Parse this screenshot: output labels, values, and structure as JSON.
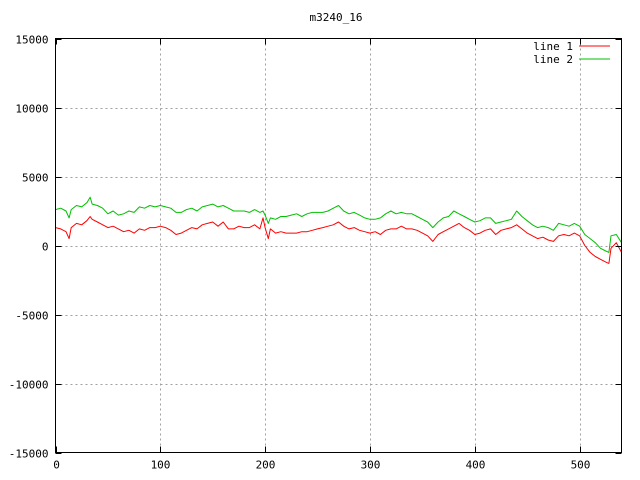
{
  "chart_data": {
    "type": "line",
    "title": "m3240_16",
    "xlabel": "",
    "ylabel": "",
    "xlim": [
      0,
      540
    ],
    "ylim": [
      -15000,
      15000
    ],
    "x_ticks": [
      0,
      100,
      200,
      300,
      400,
      500
    ],
    "y_ticks": [
      -15000,
      -10000,
      -5000,
      0,
      5000,
      10000,
      15000
    ],
    "grid": true,
    "legend_position": "top-right",
    "series": [
      {
        "name": "line 1",
        "color": "#ff0000",
        "x": [
          0,
          5,
          10,
          13,
          15,
          20,
          25,
          30,
          33,
          35,
          40,
          45,
          50,
          55,
          60,
          65,
          70,
          75,
          80,
          85,
          90,
          95,
          100,
          105,
          110,
          115,
          120,
          125,
          130,
          135,
          140,
          145,
          150,
          155,
          160,
          165,
          170,
          175,
          180,
          185,
          190,
          195,
          198,
          200,
          203,
          205,
          210,
          215,
          220,
          225,
          230,
          235,
          240,
          245,
          250,
          255,
          260,
          265,
          270,
          275,
          280,
          285,
          290,
          295,
          300,
          305,
          310,
          315,
          320,
          325,
          330,
          335,
          340,
          345,
          350,
          355,
          360,
          365,
          370,
          375,
          380,
          385,
          390,
          395,
          400,
          405,
          410,
          415,
          420,
          425,
          430,
          435,
          440,
          445,
          450,
          455,
          460,
          465,
          470,
          475,
          480,
          485,
          490,
          495,
          500,
          505,
          510,
          515,
          520,
          525,
          528,
          530,
          535,
          540
        ],
        "values": [
          1300,
          1200,
          1000,
          500,
          1300,
          1600,
          1500,
          1800,
          2100,
          1900,
          1700,
          1500,
          1300,
          1400,
          1200,
          1000,
          1100,
          900,
          1200,
          1100,
          1300,
          1300,
          1400,
          1300,
          1100,
          800,
          900,
          1100,
          1300,
          1200,
          1500,
          1600,
          1700,
          1400,
          1700,
          1200,
          1200,
          1400,
          1300,
          1300,
          1500,
          1200,
          2000,
          1300,
          500,
          1200,
          900,
          1000,
          900,
          900,
          900,
          1000,
          1000,
          1100,
          1200,
          1300,
          1400,
          1500,
          1700,
          1400,
          1200,
          1300,
          1100,
          1000,
          900,
          1000,
          800,
          1100,
          1200,
          1200,
          1400,
          1200,
          1200,
          1100,
          900,
          700,
          300,
          800,
          1000,
          1200,
          1400,
          1600,
          1300,
          1100,
          800,
          900,
          1100,
          1200,
          800,
          1100,
          1200,
          1300,
          1500,
          1200,
          900,
          700,
          500,
          600,
          400,
          300,
          700,
          800,
          700,
          900,
          700,
          0,
          -500,
          -800,
          -1000,
          -1200,
          -1300,
          -200,
          200,
          -500
        ]
      },
      {
        "name": "line 2",
        "color": "#00c000",
        "x": [
          0,
          5,
          10,
          13,
          15,
          20,
          25,
          30,
          33,
          35,
          40,
          45,
          50,
          55,
          60,
          65,
          70,
          75,
          80,
          85,
          90,
          95,
          100,
          105,
          110,
          115,
          120,
          125,
          130,
          135,
          140,
          145,
          150,
          155,
          160,
          165,
          170,
          175,
          180,
          185,
          190,
          195,
          198,
          200,
          203,
          205,
          210,
          215,
          220,
          225,
          230,
          235,
          240,
          245,
          250,
          255,
          260,
          265,
          270,
          275,
          280,
          285,
          290,
          295,
          300,
          305,
          310,
          315,
          320,
          325,
          330,
          335,
          340,
          345,
          350,
          355,
          360,
          365,
          370,
          375,
          380,
          385,
          390,
          395,
          400,
          405,
          410,
          415,
          420,
          425,
          430,
          435,
          440,
          445,
          450,
          455,
          460,
          465,
          470,
          475,
          480,
          485,
          490,
          495,
          500,
          505,
          510,
          515,
          520,
          525,
          528,
          530,
          535,
          540
        ],
        "values": [
          2600,
          2700,
          2500,
          2000,
          2600,
          2900,
          2800,
          3100,
          3500,
          3000,
          2900,
          2700,
          2300,
          2500,
          2200,
          2300,
          2500,
          2400,
          2800,
          2700,
          2900,
          2800,
          2900,
          2800,
          2700,
          2400,
          2400,
          2600,
          2700,
          2500,
          2800,
          2900,
          3000,
          2800,
          2900,
          2700,
          2500,
          2500,
          2500,
          2400,
          2600,
          2400,
          2500,
          2200,
          1600,
          2000,
          1900,
          2100,
          2100,
          2200,
          2300,
          2100,
          2300,
          2400,
          2400,
          2400,
          2500,
          2700,
          2900,
          2500,
          2300,
          2400,
          2200,
          2000,
          1900,
          1900,
          2000,
          2300,
          2500,
          2300,
          2400,
          2300,
          2300,
          2100,
          1900,
          1700,
          1300,
          1700,
          2000,
          2100,
          2500,
          2300,
          2100,
          1900,
          1700,
          1800,
          2000,
          2000,
          1600,
          1700,
          1800,
          1900,
          2500,
          2100,
          1800,
          1500,
          1300,
          1400,
          1300,
          1100,
          1600,
          1500,
          1400,
          1600,
          1400,
          800,
          500,
          200,
          -200,
          -400,
          -500,
          700,
          800,
          200
        ]
      }
    ]
  }
}
